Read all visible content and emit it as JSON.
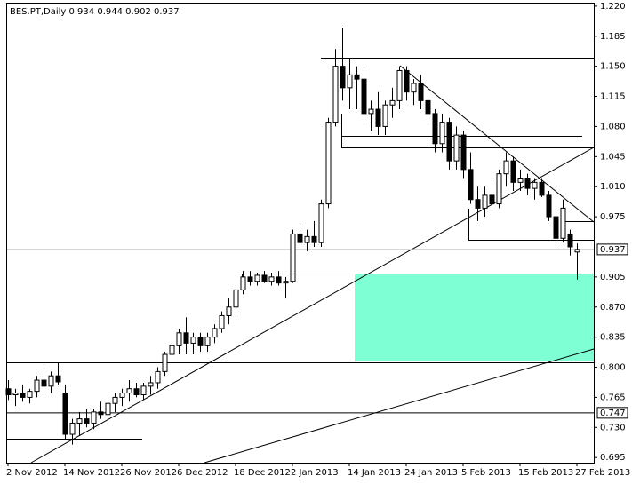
{
  "chart_data": {
    "type": "candlestick",
    "title": "BES.PT,Daily",
    "categories": [
      "2 Nov 2012",
      null,
      null,
      null,
      null,
      null,
      null,
      null,
      "14 Nov 2012",
      null,
      null,
      null,
      null,
      null,
      null,
      null,
      "26 Nov 2012",
      null,
      null,
      null,
      null,
      null,
      null,
      null,
      "6 Dec 2012",
      null,
      null,
      null,
      null,
      null,
      null,
      null,
      "18 Dec 2012",
      null,
      null,
      null,
      null,
      null,
      null,
      null,
      "2 Jan 2013",
      null,
      null,
      null,
      null,
      null,
      null,
      null,
      "14 Jan 2013",
      null,
      null,
      null,
      null,
      null,
      null,
      null,
      "24 Jan 2013",
      null,
      null,
      null,
      null,
      null,
      null,
      null,
      "5 Feb 2013",
      null,
      null,
      null,
      null,
      null,
      null,
      null,
      "15 Feb 2013",
      null,
      null,
      null,
      null,
      null,
      null,
      null,
      "27 Feb 2013"
    ],
    "open": [
      0.775,
      0.768,
      0.77,
      0.765,
      0.772,
      0.785,
      0.778,
      0.79,
      0.77,
      0.722,
      0.735,
      0.74,
      0.735,
      0.748,
      0.745,
      0.758,
      0.765,
      0.77,
      0.775,
      0.768,
      0.778,
      0.782,
      0.795,
      0.815,
      0.825,
      0.84,
      0.828,
      0.835,
      0.825,
      0.835,
      0.845,
      0.86,
      0.87,
      0.89,
      0.905,
      0.9,
      0.907,
      0.9,
      0.905,
      0.898,
      0.9,
      0.955,
      0.945,
      0.952,
      0.945,
      0.99,
      1.085,
      1.15,
      1.125,
      1.14,
      1.135,
      1.095,
      1.1,
      1.08,
      1.105,
      1.11,
      1.145,
      1.12,
      1.13,
      1.11,
      1.095,
      1.06,
      1.085,
      1.04,
      1.07,
      1.03,
      0.995,
      0.985,
      1.0,
      0.99,
      1.025,
      1.04,
      1.015,
      1.02,
      1.008,
      1.015,
      1.0,
      0.975,
      0.95,
      0.955,
      0.934
    ],
    "high": [
      0.785,
      0.775,
      0.78,
      0.775,
      0.79,
      0.8,
      0.795,
      0.805,
      0.78,
      0.74,
      0.748,
      0.752,
      0.752,
      0.76,
      0.762,
      0.77,
      0.775,
      0.785,
      0.782,
      0.782,
      0.79,
      0.8,
      0.818,
      0.83,
      0.845,
      0.858,
      0.84,
      0.84,
      0.84,
      0.85,
      0.865,
      0.88,
      0.895,
      0.912,
      0.912,
      0.91,
      0.912,
      0.91,
      0.912,
      0.905,
      0.96,
      0.97,
      0.96,
      0.97,
      0.995,
      1.09,
      1.17,
      1.195,
      1.16,
      1.15,
      1.145,
      1.11,
      1.12,
      1.11,
      1.125,
      1.15,
      1.15,
      1.135,
      1.14,
      1.12,
      1.1,
      1.095,
      1.09,
      1.08,
      1.075,
      1.05,
      1.01,
      1.01,
      1.015,
      1.03,
      1.05,
      1.045,
      1.03,
      1.025,
      1.02,
      1.02,
      1.005,
      0.985,
      0.995,
      0.96,
      0.944
    ],
    "low": [
      0.762,
      0.755,
      0.76,
      0.758,
      0.765,
      0.77,
      0.77,
      0.78,
      0.715,
      0.71,
      0.72,
      0.73,
      0.728,
      0.74,
      0.738,
      0.748,
      0.755,
      0.76,
      0.765,
      0.762,
      0.768,
      0.775,
      0.79,
      0.805,
      0.815,
      0.815,
      0.815,
      0.818,
      0.818,
      0.828,
      0.84,
      0.85,
      0.862,
      0.885,
      0.895,
      0.895,
      0.898,
      0.895,
      0.895,
      0.88,
      0.898,
      0.94,
      0.935,
      0.94,
      0.94,
      0.985,
      1.08,
      1.11,
      1.1,
      1.1,
      1.085,
      1.075,
      1.07,
      1.07,
      1.09,
      1.1,
      1.11,
      1.105,
      1.1,
      1.085,
      1.05,
      1.05,
      1.03,
      1.03,
      1.02,
      0.99,
      0.97,
      0.975,
      0.985,
      0.985,
      1.01,
      1.005,
      1.005,
      1.0,
      0.995,
      0.998,
      0.97,
      0.94,
      0.945,
      0.93,
      0.902
    ],
    "close": [
      0.768,
      0.77,
      0.765,
      0.772,
      0.785,
      0.778,
      0.79,
      0.783,
      0.722,
      0.735,
      0.74,
      0.735,
      0.748,
      0.745,
      0.758,
      0.765,
      0.77,
      0.775,
      0.768,
      0.778,
      0.782,
      0.795,
      0.815,
      0.825,
      0.84,
      0.828,
      0.835,
      0.825,
      0.835,
      0.845,
      0.86,
      0.87,
      0.89,
      0.905,
      0.9,
      0.907,
      0.9,
      0.905,
      0.898,
      0.9,
      0.955,
      0.945,
      0.952,
      0.945,
      0.99,
      1.085,
      1.15,
      1.125,
      1.14,
      1.135,
      1.095,
      1.1,
      1.08,
      1.105,
      1.11,
      1.145,
      1.12,
      1.13,
      1.11,
      1.095,
      1.06,
      1.085,
      1.04,
      1.07,
      1.03,
      0.995,
      0.985,
      1.0,
      0.99,
      1.025,
      1.04,
      1.015,
      1.02,
      1.008,
      1.015,
      1.0,
      0.975,
      0.95,
      0.985,
      0.94,
      0.937
    ],
    "ylim": [
      0.689,
      1.224
    ],
    "yticks": [
      {
        "value": 1.22,
        "label": "1.220"
      },
      1.185,
      {
        "value": 1.15,
        "label": "1.150"
      },
      1.115,
      {
        "value": 1.08,
        "label": "1.080"
      },
      1.045,
      {
        "value": 1.01,
        "label": "1.010"
      },
      0.975,
      0.905,
      {
        "value": 0.87,
        "label": "0.870"
      },
      0.835,
      {
        "value": 0.8,
        "label": "0.800"
      },
      0.765,
      {
        "value": 0.73,
        "label": "0.730"
      },
      0.695
    ],
    "price_markers": [
      0.937,
      0.747
    ]
  }
}
